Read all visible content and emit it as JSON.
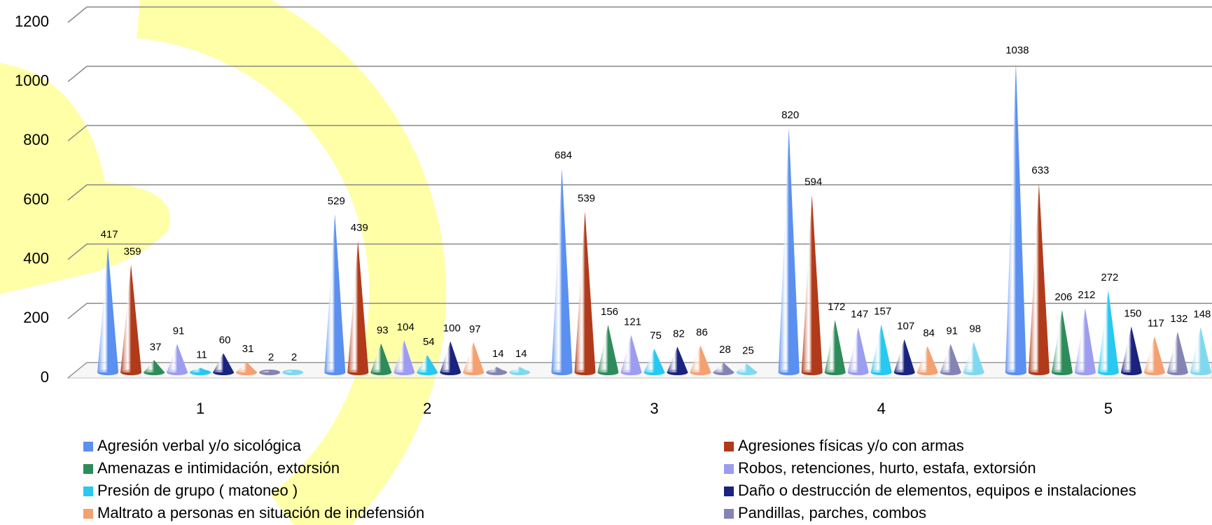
{
  "chart_data": {
    "type": "cone",
    "categories": [
      "1",
      "2",
      "3",
      "4",
      "5"
    ],
    "series": [
      {
        "name": "Agresión verbal y/o sicológica",
        "color": "#5b8ff0",
        "values": [
          417,
          529,
          684,
          820,
          1038
        ]
      },
      {
        "name": "Agresiones físicas y/o con armas",
        "color": "#b03a1a",
        "values": [
          359,
          439,
          539,
          594,
          633
        ]
      },
      {
        "name": "Amenazas e intimidación, extorsión",
        "color": "#2e8b5a",
        "values": [
          37,
          93,
          156,
          172,
          206
        ]
      },
      {
        "name": "Robos, retenciones, hurto, estafa, extorsión",
        "color": "#9c9cf0",
        "values": [
          91,
          104,
          121,
          147,
          212
        ]
      },
      {
        "name": "Presión de grupo ( matoneo )",
        "color": "#28c8f0",
        "values": [
          11,
          54,
          75,
          157,
          272
        ]
      },
      {
        "name": "Daño o destrucción de elementos, equipos e instalaciones",
        "color": "#1a237e",
        "values": [
          60,
          100,
          82,
          107,
          150
        ]
      },
      {
        "name": "Maltrato a personas en situación de indefensión",
        "color": "#f4a070",
        "values": [
          31,
          97,
          86,
          84,
          117
        ]
      },
      {
        "name": "Pandillas, parches, combos",
        "color": "#8484b4",
        "values": [
          2,
          14,
          28,
          91,
          132
        ]
      },
      {
        "color": "#80d8f0",
        "values": [
          2,
          14,
          25,
          98,
          148
        ]
      }
    ],
    "ylim": [
      0,
      1200
    ],
    "yticks": [
      0,
      200,
      400,
      600,
      800,
      1000,
      1200
    ],
    "grid": true
  }
}
